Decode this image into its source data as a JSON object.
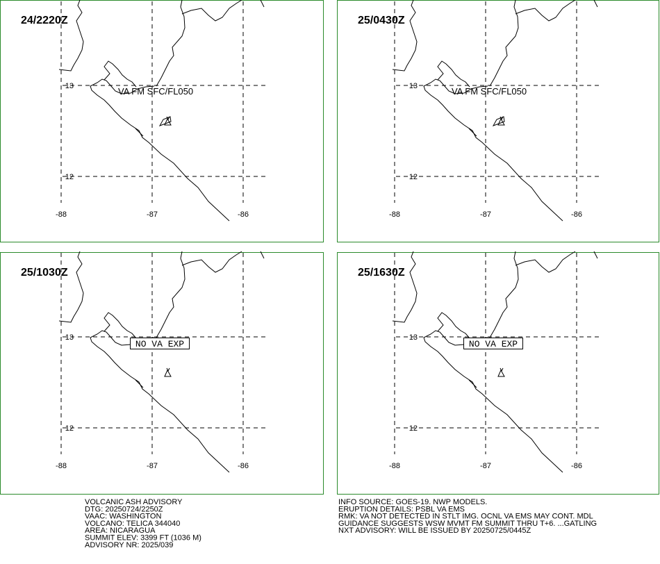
{
  "panels": [
    {
      "time": "24/2220Z",
      "annotation": "VA FM SFC/FL050",
      "lat_labels": [
        "13",
        "12"
      ],
      "lon_labels": [
        "-88",
        "-87",
        "-86"
      ]
    },
    {
      "time": "25/0430Z",
      "annotation": "VA FM SFC/FL050",
      "lat_labels": [
        "13",
        "12"
      ],
      "lon_labels": [
        "-88",
        "-87",
        "-86"
      ]
    },
    {
      "time": "25/1030Z",
      "annotation": "NO VA EXP",
      "lat_labels": [
        "13",
        "12"
      ],
      "lon_labels": [
        "-88",
        "-87",
        "-86"
      ]
    },
    {
      "time": "25/1630Z",
      "annotation": "NO VA EXP",
      "lat_labels": [
        "13",
        "12"
      ],
      "lon_labels": [
        "-88",
        "-87",
        "-86"
      ]
    }
  ],
  "advisory_left": [
    "VOLCANIC ASH ADVISORY",
    "DTG: 20250724/2250Z",
    "VAAC: WASHINGTON",
    "VOLCANO: TELICA 344040",
    "AREA: NICARAGUA",
    "SUMMIT ELEV: 3399 FT (1036 M)",
    "ADVISORY NR: 2025/039"
  ],
  "advisory_right": [
    "INFO SOURCE: GOES-19. NWP MODELS.",
    "ERUPTION DETAILS: PSBL VA EMS",
    "RMK: VA NOT DETECTED IN STLT IMG. OCNL VA EMS MAY CONT. MDL",
    "GUIDANCE SUGGESTS WSW MVMT FM SUMMIT THRU T+6. ...GATLING",
    "NXT ADVISORY: WILL BE ISSUED BY 20250725/0445Z"
  ]
}
